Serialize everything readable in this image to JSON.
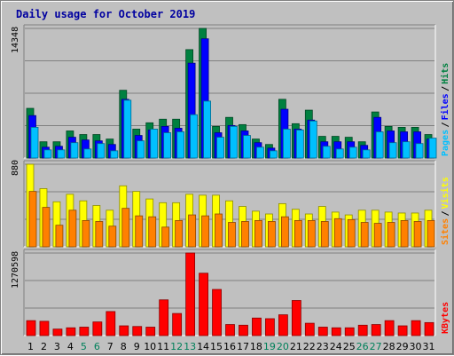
{
  "chart_data": [
    {
      "type": "bar",
      "title": "Daily usage for October 2019",
      "categories": [
        "1",
        "2",
        "3",
        "4",
        "5",
        "6",
        "7",
        "8",
        "9",
        "10",
        "11",
        "12",
        "13",
        "14",
        "15",
        "16",
        "17",
        "18",
        "19",
        "20",
        "21",
        "22",
        "23",
        "24",
        "25",
        "26",
        "27",
        "28",
        "29",
        "30",
        "31"
      ],
      "weekend_days": [
        "5",
        "6",
        "12",
        "13",
        "19",
        "20",
        "26",
        "27"
      ],
      "max_label": "14348",
      "ymax": 14348,
      "series": [
        {
          "name": "Hits",
          "color": "#008040",
          "values": [
            5500,
            1800,
            1800,
            3000,
            2600,
            2600,
            2100,
            7500,
            3200,
            3900,
            4300,
            4300,
            12000,
            14348,
            3500,
            4500,
            3700,
            2100,
            1500,
            6500,
            3800,
            5300,
            2400,
            2400,
            2300,
            1800,
            5100,
            3500,
            3400,
            3400,
            2600
          ]
        },
        {
          "name": "Files",
          "color": "#0000ff",
          "values": [
            4700,
            1200,
            1300,
            2300,
            2000,
            1900,
            1500,
            6500,
            2500,
            3100,
            3500,
            3300,
            10500,
            13200,
            2800,
            3600,
            3000,
            1700,
            1100,
            5400,
            3200,
            4200,
            1800,
            1800,
            1800,
            1400,
            4500,
            3000,
            2900,
            2900,
            2100
          ]
        },
        {
          "name": "Pages",
          "color": "#00c0ff",
          "values": [
            3400,
            900,
            900,
            1700,
            1000,
            1600,
            800,
            6400,
            1900,
            3200,
            2800,
            2900,
            4800,
            6300,
            2300,
            3500,
            2500,
            1200,
            800,
            3200,
            3100,
            4100,
            1300,
            1000,
            1200,
            900,
            2900,
            1700,
            1800,
            1600,
            2200
          ]
        }
      ],
      "side_labels": [
        "Pages",
        "/",
        "Files",
        "/",
        "Hits"
      ]
    },
    {
      "type": "bar",
      "categories": [
        "1",
        "2",
        "3",
        "4",
        "5",
        "6",
        "7",
        "8",
        "9",
        "10",
        "11",
        "12",
        "13",
        "14",
        "15",
        "16",
        "17",
        "18",
        "19",
        "20",
        "21",
        "22",
        "23",
        "24",
        "25",
        "26",
        "27",
        "28",
        "29",
        "30",
        "31"
      ],
      "max_label": "880",
      "ymax": 880,
      "series": [
        {
          "name": "Visits",
          "color": "#ffff00",
          "values": [
            880,
            620,
            480,
            560,
            490,
            440,
            390,
            650,
            590,
            510,
            470,
            470,
            560,
            550,
            550,
            490,
            430,
            380,
            350,
            460,
            400,
            350,
            430,
            370,
            340,
            390,
            390,
            370,
            360,
            360,
            390
          ]
        },
        {
          "name": "Sites",
          "color": "#ff8000",
          "values": [
            590,
            420,
            230,
            390,
            280,
            270,
            220,
            410,
            330,
            320,
            210,
            280,
            340,
            330,
            350,
            260,
            270,
            280,
            270,
            320,
            280,
            280,
            270,
            300,
            290,
            260,
            250,
            260,
            280,
            270,
            280
          ]
        }
      ],
      "side_labels": [
        "Sites",
        "/",
        "Visits"
      ]
    },
    {
      "type": "bar",
      "categories": [
        "1",
        "2",
        "3",
        "4",
        "5",
        "6",
        "7",
        "8",
        "9",
        "10",
        "11",
        "12",
        "13",
        "14",
        "15",
        "16",
        "17",
        "18",
        "19",
        "20",
        "21",
        "22",
        "23",
        "24",
        "25",
        "26",
        "27",
        "28",
        "29",
        "30",
        "31"
      ],
      "max_label": "1270598",
      "ymax": 1270598,
      "series": [
        {
          "name": "KBytes",
          "color": "#ff0000",
          "values": [
            230000,
            220000,
            100000,
            120000,
            130000,
            210000,
            370000,
            150000,
            140000,
            130000,
            550000,
            340000,
            1270598,
            960000,
            710000,
            170000,
            160000,
            270000,
            260000,
            320000,
            540000,
            190000,
            130000,
            120000,
            120000,
            160000,
            170000,
            230000,
            150000,
            230000,
            200000
          ]
        }
      ],
      "side_labels": [
        "KBytes"
      ]
    }
  ]
}
